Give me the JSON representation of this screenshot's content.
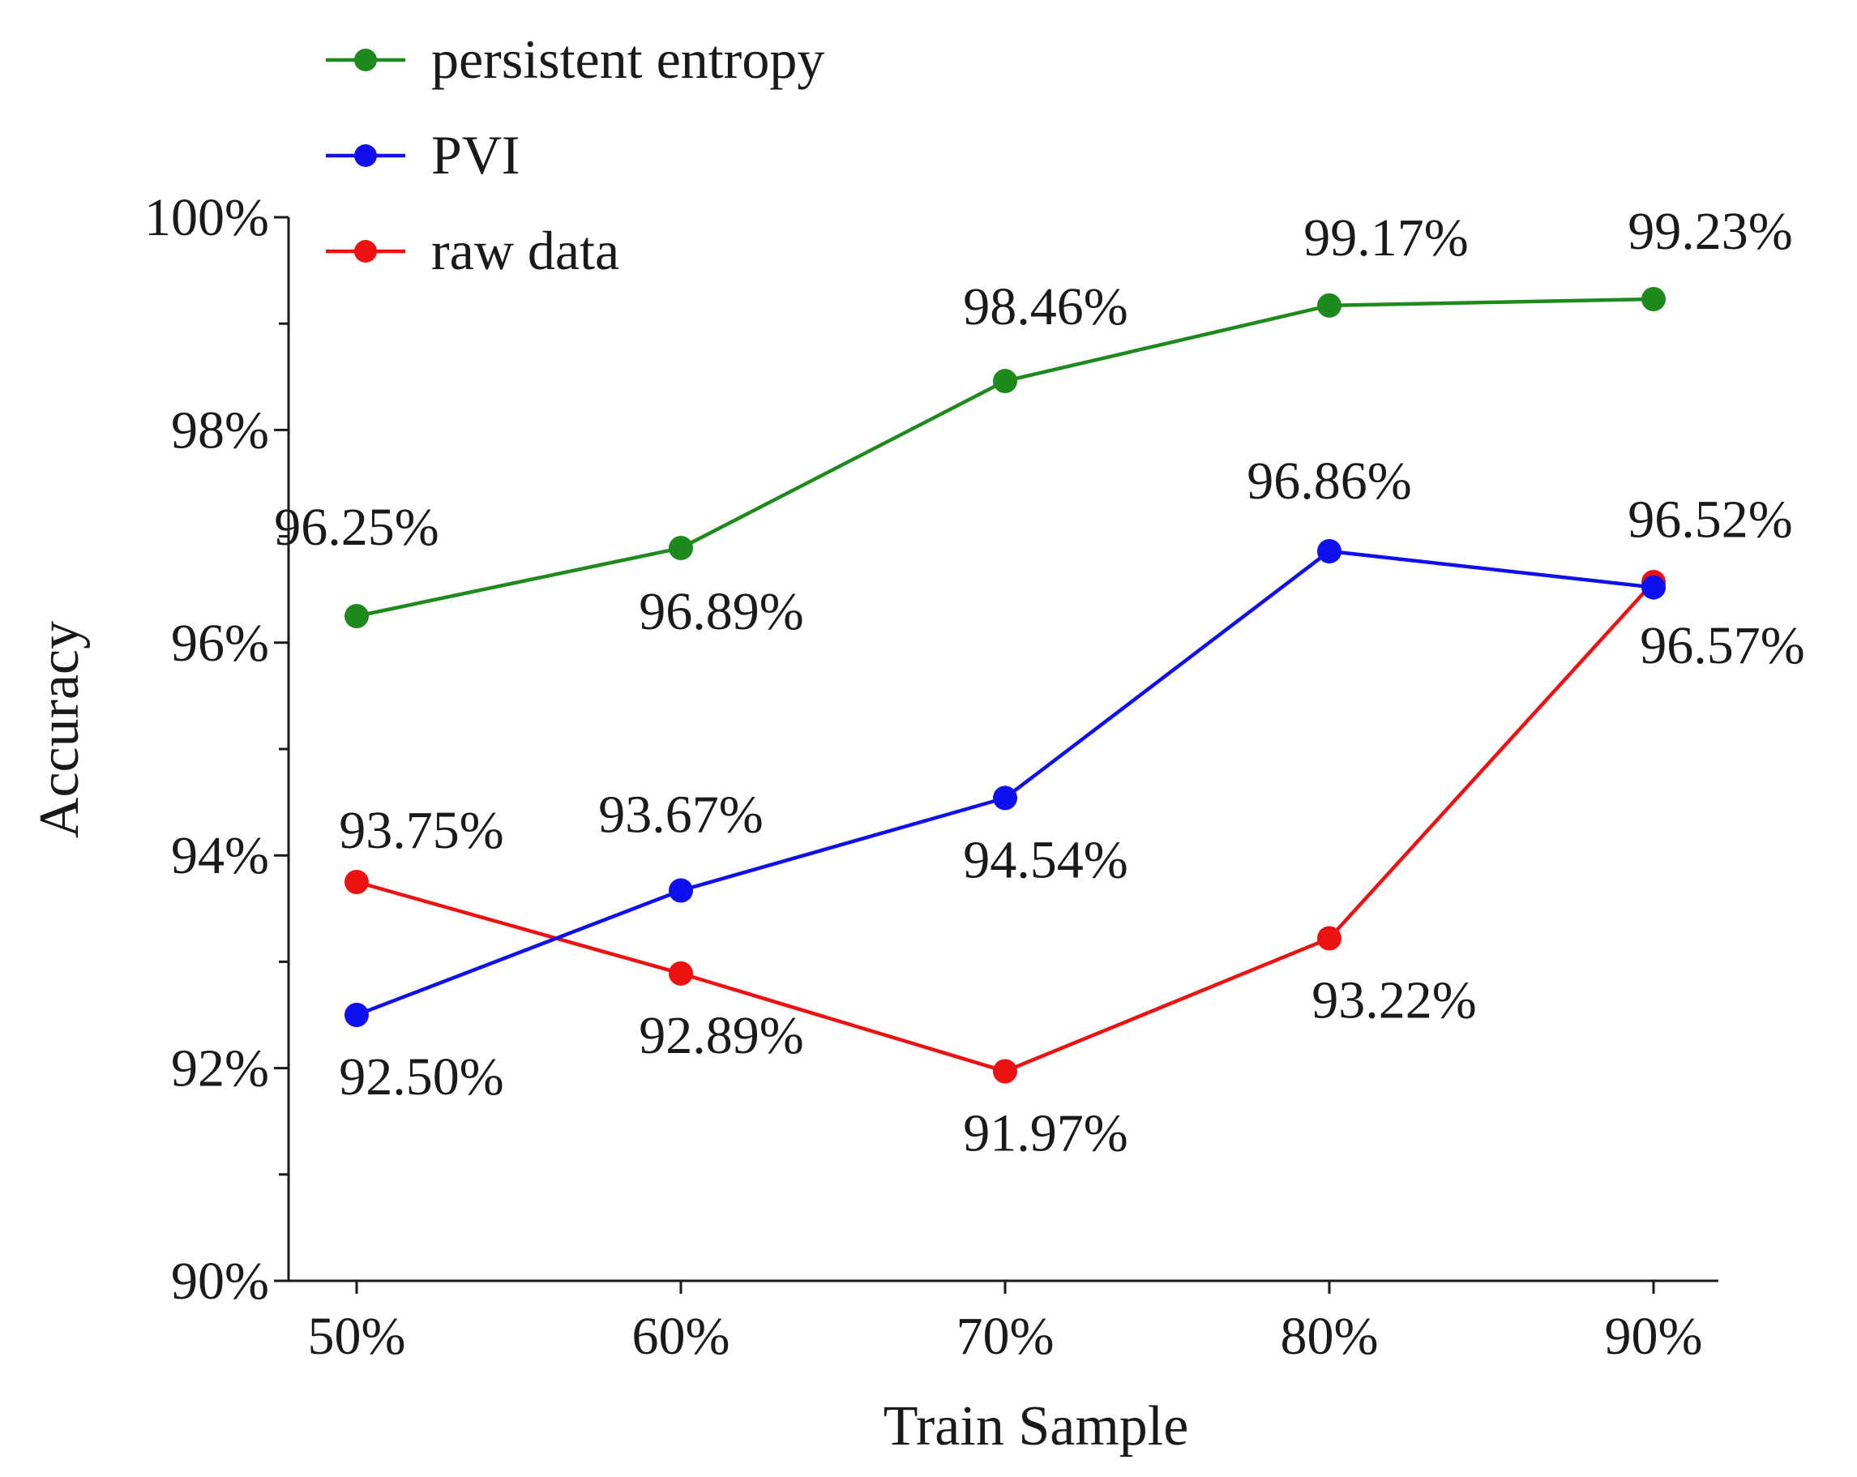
{
  "chart_data": {
    "type": "line",
    "title": "",
    "xlabel": "Train Sample",
    "ylabel": "Accuracy",
    "categories": [
      "50%",
      "60%",
      "70%",
      "80%",
      "90%"
    ],
    "ylim": [
      90,
      100
    ],
    "yticks": [
      90,
      92,
      94,
      96,
      98,
      100
    ],
    "ytick_labels": [
      "90%",
      "92%",
      "94%",
      "96%",
      "98%",
      "100%"
    ],
    "grid": false,
    "legend_position": "top-left",
    "series": [
      {
        "name": "persistent entropy",
        "color": "#1e8a1e",
        "values": [
          96.25,
          96.89,
          98.46,
          99.17,
          99.23
        ],
        "labels": [
          "96.25%",
          "96.89%",
          "98.46%",
          "99.17%",
          "99.23%"
        ]
      },
      {
        "name": "PVI",
        "color": "#1010ee",
        "values": [
          92.5,
          93.67,
          94.54,
          96.86,
          96.52
        ],
        "labels": [
          "92.50%",
          "93.67%",
          "94.54%",
          "96.86%",
          "96.52%"
        ]
      },
      {
        "name": "raw data",
        "color": "#ee1111",
        "values": [
          93.75,
          92.89,
          91.97,
          93.22,
          96.57
        ],
        "labels": [
          "93.75%",
          "92.89%",
          "91.97%",
          "93.22%",
          "96.57%"
        ]
      }
    ]
  }
}
